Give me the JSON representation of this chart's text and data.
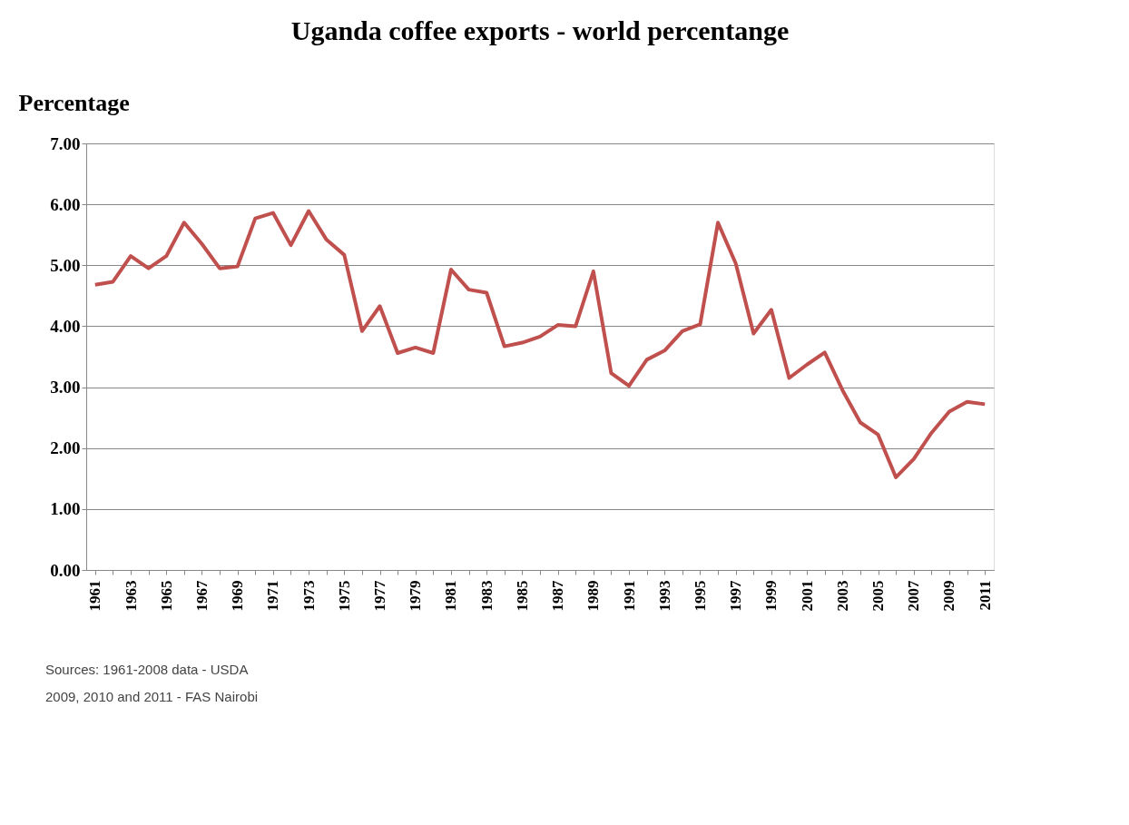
{
  "chart_data": {
    "type": "line",
    "title": "Uganda coffee exports - world percentange",
    "ylabel": "Percentage",
    "categories": [
      "1961",
      null,
      "1963",
      null,
      "1965",
      null,
      "1967",
      null,
      "1969",
      null,
      "1971",
      null,
      "1973",
      null,
      "1975",
      null,
      "1977",
      null,
      "1979",
      null,
      "1981",
      null,
      "1983",
      null,
      "1985",
      null,
      "1987",
      null,
      "1989",
      null,
      "1991",
      null,
      "1993",
      null,
      "1995",
      null,
      "1997",
      null,
      "1999",
      null,
      "2001",
      null,
      "2003",
      null,
      "2005",
      null,
      "2007",
      null,
      "2009",
      null,
      "2011"
    ],
    "series": [
      {
        "color": "#c0504d",
        "values": [
          4.68,
          4.73,
          5.15,
          4.95,
          5.15,
          5.7,
          5.35,
          4.95,
          4.98,
          5.77,
          5.86,
          5.33,
          5.89,
          5.42,
          5.17,
          3.92,
          4.33,
          3.56,
          3.65,
          3.56,
          4.93,
          4.6,
          4.55,
          3.67,
          3.73,
          3.83,
          4.02,
          4.0,
          4.9,
          3.23,
          3.02,
          3.45,
          3.6,
          3.92,
          4.03,
          5.7,
          5.03,
          3.88,
          4.27,
          3.15,
          3.37,
          3.57,
          2.95,
          2.42,
          2.22,
          1.52,
          1.82,
          2.25,
          2.6,
          2.76,
          2.72
        ]
      }
    ],
    "ylim": [
      0,
      7
    ],
    "yticks": [
      {
        "value": 0,
        "label": "0.00"
      },
      {
        "value": 1,
        "label": "1.00"
      },
      {
        "value": 2,
        "label": "2.00"
      },
      {
        "value": 3,
        "label": "3.00"
      },
      {
        "value": 4,
        "label": "4.00"
      },
      {
        "value": 5,
        "label": "5.00"
      },
      {
        "value": 6,
        "label": "6.00"
      },
      {
        "value": 7,
        "label": "7.00"
      }
    ],
    "grid": "y",
    "marker": "none",
    "line_style": "solid",
    "annotations": [
      "Sources: 1961-2008 data - USDA",
      "2009, 2010 and 2011 - FAS Nairobi"
    ]
  }
}
